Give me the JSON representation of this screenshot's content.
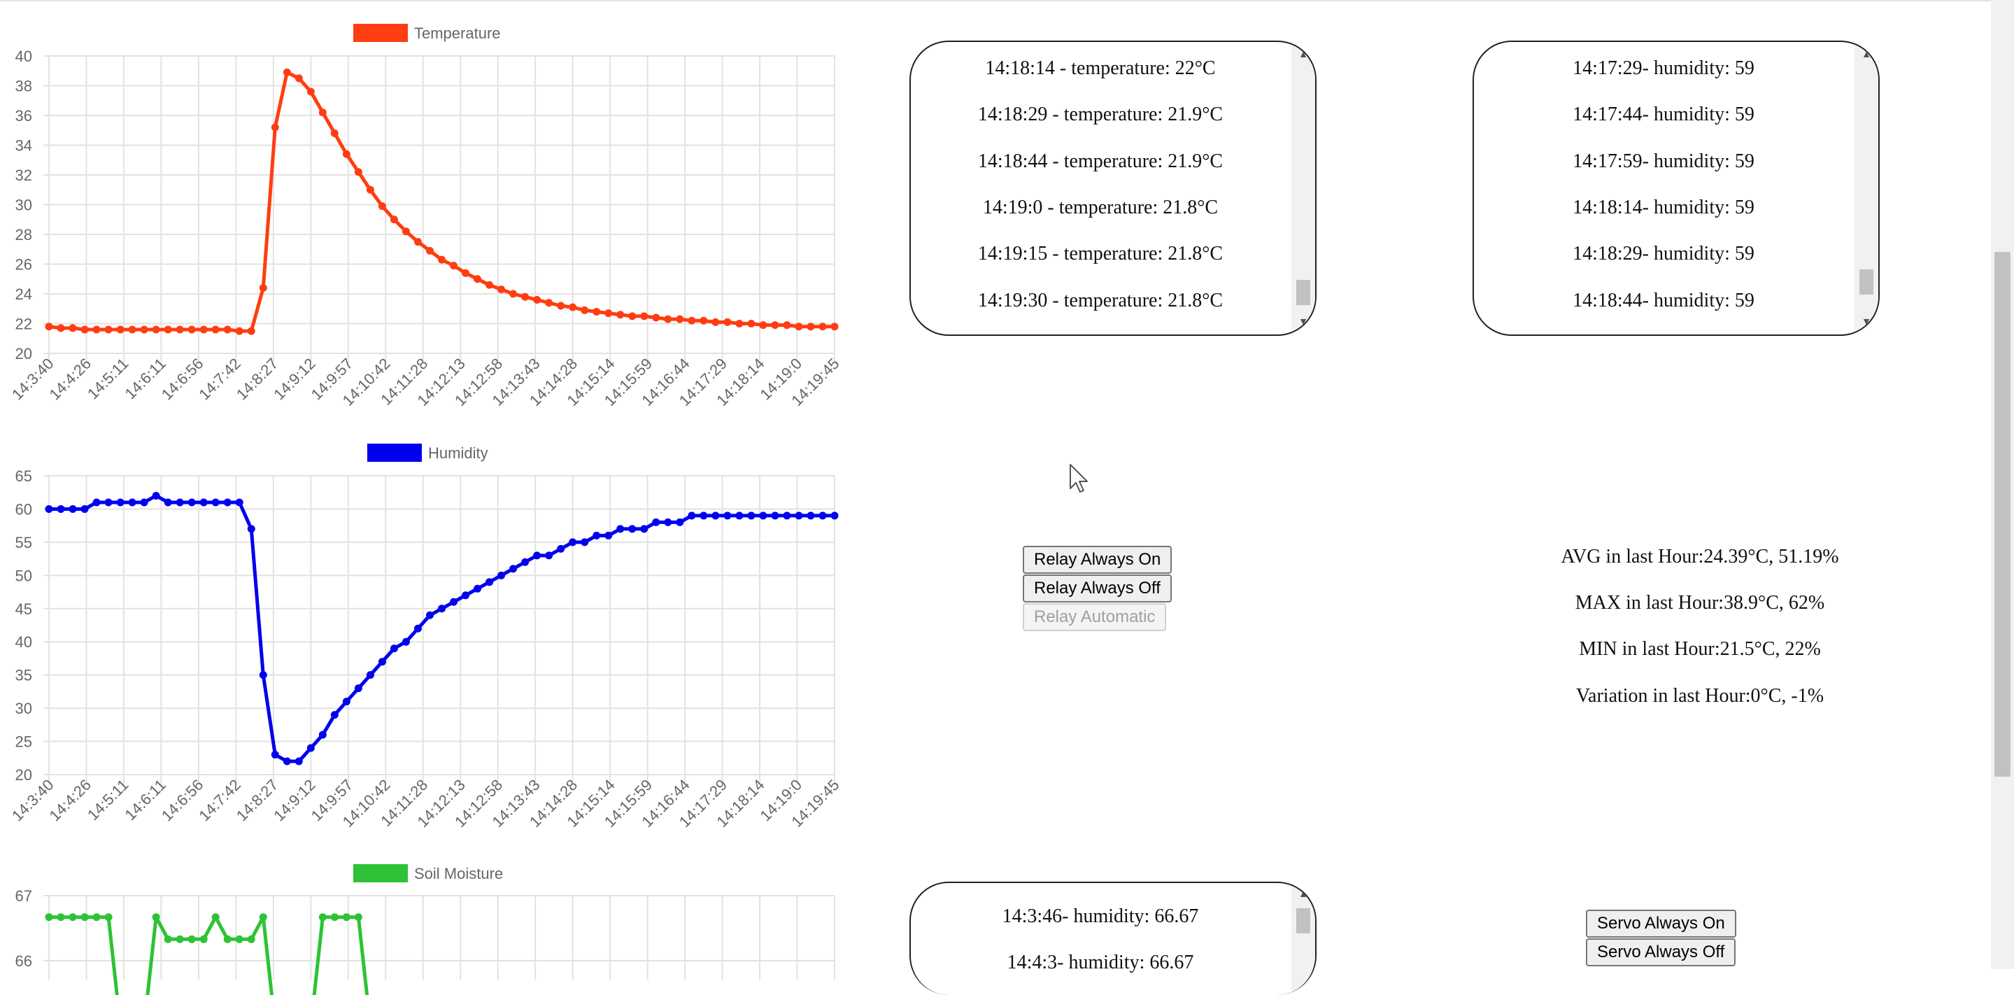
{
  "charts": {
    "labels": [
      "14:3:40",
      "14:4:26",
      "14:5:11",
      "14:6:11",
      "14:6:56",
      "14:7:42",
      "14:8:27",
      "14:9:12",
      "14:9:57",
      "14:10:42",
      "14:11:28",
      "14:12:13",
      "14:12:58",
      "14:13:43",
      "14:14:28",
      "14:15:14",
      "14:15:59",
      "14:16:44",
      "14:17:29",
      "14:18:14",
      "14:19:0",
      "14:19:45"
    ]
  },
  "chart_data": [
    {
      "type": "line",
      "title": "",
      "legend": "Temperature",
      "color": "#ff3d12",
      "ylim": [
        20,
        40
      ],
      "yticks": [
        20,
        22,
        24,
        26,
        28,
        30,
        32,
        34,
        36,
        38,
        40
      ],
      "values": [
        21.8,
        21.7,
        21.7,
        21.6,
        21.6,
        21.6,
        21.6,
        21.6,
        21.6,
        21.6,
        21.6,
        21.6,
        21.6,
        21.6,
        21.6,
        21.6,
        21.5,
        21.5,
        24.4,
        35.2,
        38.9,
        38.5,
        37.6,
        36.2,
        34.8,
        33.4,
        32.2,
        31.0,
        29.9,
        29.0,
        28.2,
        27.5,
        26.9,
        26.3,
        25.9,
        25.4,
        25.0,
        24.6,
        24.3,
        24.0,
        23.8,
        23.6,
        23.4,
        23.2,
        23.1,
        22.9,
        22.8,
        22.7,
        22.6,
        22.5,
        22.5,
        22.4,
        22.3,
        22.3,
        22.2,
        22.2,
        22.1,
        22.1,
        22.0,
        22.0,
        21.9,
        21.9,
        21.9,
        21.8,
        21.8,
        21.8,
        21.8
      ]
    },
    {
      "type": "line",
      "title": "",
      "legend": "Humidity",
      "color": "#0000ee",
      "ylim": [
        20,
        65
      ],
      "yticks": [
        20,
        25,
        30,
        35,
        40,
        45,
        50,
        55,
        60,
        65
      ],
      "values": [
        60,
        60,
        60,
        60,
        61,
        61,
        61,
        61,
        61,
        62,
        61,
        61,
        61,
        61,
        61,
        61,
        61,
        57,
        35,
        23,
        22,
        22,
        24,
        26,
        29,
        31,
        33,
        35,
        37,
        39,
        40,
        42,
        44,
        45,
        46,
        47,
        48,
        49,
        50,
        51,
        52,
        53,
        53,
        54,
        55,
        55,
        56,
        56,
        57,
        57,
        57,
        58,
        58,
        58,
        59,
        59,
        59,
        59,
        59,
        59,
        59,
        59,
        59,
        59,
        59,
        59,
        59
      ]
    },
    {
      "type": "line",
      "title": "",
      "legend": "Soil Moisture",
      "color": "#2ec236",
      "ylim": [
        65,
        67
      ],
      "yticks": [
        66,
        67
      ],
      "values": [
        66.67,
        66.67,
        66.67,
        66.67,
        66.67,
        66.67,
        65,
        65,
        65,
        66.67,
        66.33,
        66.33,
        66.33,
        66.33,
        66.67,
        66.33,
        66.33,
        66.33,
        66.67,
        65,
        65,
        65,
        65,
        66.67,
        66.67,
        66.67,
        66.67,
        65,
        65
      ]
    }
  ],
  "temperature_log": {
    "entries": [
      "14:18:14 - temperature: 22°C",
      "14:18:29 - temperature: 21.9°C",
      "14:18:44 - temperature: 21.9°C",
      "14:19:0 - temperature: 21.8°C",
      "14:19:15 - temperature: 21.8°C",
      "14:19:30 - temperature: 21.8°C"
    ],
    "scroll_up": "▲",
    "scroll_down": "▼"
  },
  "humidity_log": {
    "entries": [
      "14:17:29- humidity: 59",
      "14:17:44- humidity: 59",
      "14:17:59- humidity: 59",
      "14:18:14- humidity: 59",
      "14:18:29- humidity: 59",
      "14:18:44- humidity: 59"
    ],
    "scroll_up": "▲",
    "scroll_down": "▼"
  },
  "soil_log": {
    "entries": [
      "14:3:46- humidity: 66.67",
      "14:4:3- humidity: 66.67"
    ],
    "scroll_up": "▲"
  },
  "relay": {
    "on_label": "Relay Always On",
    "off_label": "Relay Always Off",
    "auto_label": "Relay Automatic"
  },
  "stats": {
    "avg": "AVG in last Hour:24.39°C, 51.19%",
    "max": "MAX in last Hour:38.9°C, 62%",
    "min": "MIN in last Hour:21.5°C, 22%",
    "variation": "Variation in last Hour:0°C, -1%"
  },
  "servo": {
    "on_label": "Servo Always On",
    "off_label": "Servo Always Off"
  },
  "icons": {
    "cursor": "mouse-pointer-icon"
  }
}
